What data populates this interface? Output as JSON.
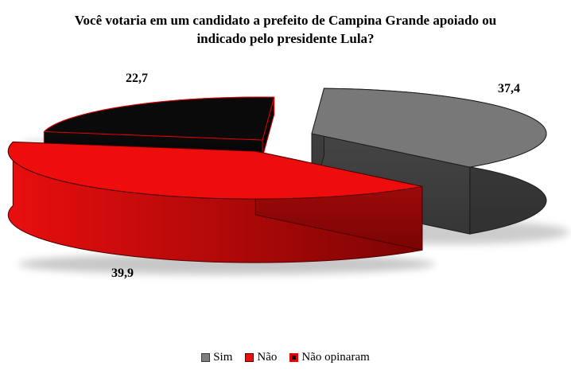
{
  "title": {
    "lines": [
      "Você votaria em um candidato a prefeito de Campina Grande apoiado ou",
      "indicado pelo presidente Lula?"
    ]
  },
  "chart_data": {
    "type": "pie",
    "style": "3d-exploded-pie",
    "title": "Você votaria em um candidato a prefeito de Campina Grande apoiado ou indicado pelo presidente Lula?",
    "value_format": "percent, comma decimal separator",
    "legend_position": "bottom",
    "background": "#ffffff",
    "slices": [
      {
        "label": "Sim",
        "value": 37.4,
        "display": "37,4",
        "top": "#787878",
        "wall_colors": [
          "#3e3e3e",
          "#313131"
        ],
        "cut_colors": [
          "#454545",
          "#363636"
        ],
        "stroke": "#1c1c1c",
        "legend": {
          "fill": "#7e7e7e",
          "border": "#3a3a3a",
          "border_width": 1
        }
      },
      {
        "label": "Não",
        "value": 39.9,
        "display": "39,9",
        "top": "#ee0d0d",
        "wall_colors": [
          "#e90e0e",
          "#7c0404"
        ],
        "cut_colors": [
          "#b00d0d",
          "#7a0404"
        ],
        "stroke": "#4d0000",
        "legend": {
          "fill": "#ee0d0d",
          "border": "#5a0000",
          "border_width": 1
        }
      },
      {
        "label": "Não opinaram",
        "value": 22.7,
        "display": "22,7",
        "top": "#0a0a0a",
        "wall_colors": [
          "#0a0a0a",
          "#020202"
        ],
        "cut_colors": [
          "#0d0d0d",
          "#030303"
        ],
        "stroke": "#e00000",
        "legend": {
          "fill": "#0a0a0a",
          "border": "#e60000",
          "border_width": 3
        }
      }
    ]
  }
}
